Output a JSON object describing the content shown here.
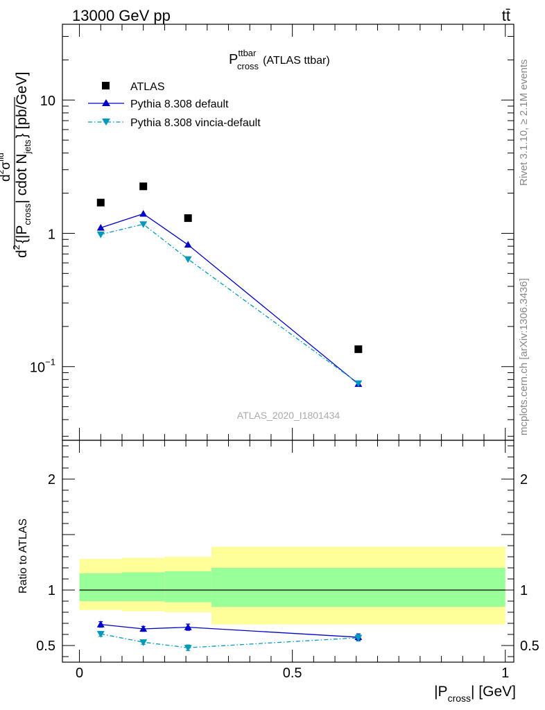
{
  "header": {
    "energy_label": "13000 GeV pp",
    "process_label": "tt̄"
  },
  "side": {
    "rivet_label": "Rivet 3.1.10, ≥ 2.1M events",
    "mcplots_label": "mcplots.cern.ch [arXiv:1306.3436]"
  },
  "chart_data": [
    {
      "type": "line",
      "panel": "main",
      "title": "P_cross^ttbar (ATLAS ttbar)",
      "title_main": "P",
      "title_sup": "ttbar",
      "title_sub": "cross",
      "title_suffix": "(ATLAS ttbar)",
      "analysis_label": "ATLAS_2020_I1801434",
      "ylabel": "d²σ^fid / d²{|P_cross| cdot N_jets} [pb/GeV]",
      "ylabel_parts": {
        "num_prefix": "d",
        "num_sup": "2",
        "num_sigma": "σ",
        "num_sigma_sup": "fid",
        "den_prefix": "d",
        "den_sup": "2",
        "den_body": "{|P",
        "den_sub1": "cross",
        "den_mid": "| cdot N",
        "den_sub2": "jets",
        "den_suffix": "} [pb/GeV]"
      },
      "yscale": "log",
      "ylim": [
        0.028,
        37
      ],
      "xlim": [
        -0.04,
        1.02
      ],
      "yticks": [
        {
          "value": 0.1,
          "base": "10",
          "exp": "−1"
        },
        {
          "value": 1,
          "base": "1",
          "exp": ""
        },
        {
          "value": 10,
          "base": "10",
          "exp": ""
        }
      ],
      "legend_position": "top-left",
      "series": [
        {
          "name": "ATLAS",
          "marker": "square",
          "color": "#000000",
          "x": [
            0.05,
            0.15,
            0.255,
            0.655
          ],
          "y": [
            1.7,
            2.25,
            1.3,
            0.135
          ]
        },
        {
          "name": "Pythia 8.308 default",
          "marker": "triangle-up",
          "line": "solid",
          "color": "#0000cc",
          "x": [
            0.05,
            0.15,
            0.255,
            0.655
          ],
          "y": [
            1.1,
            1.4,
            0.82,
            0.074
          ]
        },
        {
          "name": "Pythia 8.308 vincia-default",
          "marker": "triangle-down",
          "line": "dashdot",
          "color": "#0099bb",
          "x": [
            0.05,
            0.15,
            0.255,
            0.655
          ],
          "y": [
            0.98,
            1.17,
            0.64,
            0.075
          ]
        }
      ]
    },
    {
      "type": "line",
      "panel": "ratio",
      "ylabel": "Ratio to ATLAS",
      "xlabel": "|P_cross| [GeV]",
      "xlabel_parts": {
        "pre": "|P",
        "sub": "cross",
        "post": "| [GeV]"
      },
      "xlim": [
        -0.04,
        1.02
      ],
      "ylim": [
        0.35,
        2.35
      ],
      "xticks": [
        {
          "value": 0,
          "label": "0"
        },
        {
          "value": 0.5,
          "label": "0.5"
        },
        {
          "value": 1,
          "label": "1"
        }
      ],
      "yticks": [
        {
          "value": 0.5,
          "label": "0.5"
        },
        {
          "value": 1,
          "label": "1"
        },
        {
          "value": 2,
          "label": "2"
        }
      ],
      "bands": [
        {
          "x0": 0.0,
          "x1": 0.1,
          "yellow": [
            0.82,
            1.28
          ],
          "green": [
            0.9,
            1.15
          ]
        },
        {
          "x0": 0.1,
          "x1": 0.2,
          "yellow": [
            0.81,
            1.29
          ],
          "green": [
            0.9,
            1.16
          ]
        },
        {
          "x0": 0.2,
          "x1": 0.31,
          "yellow": [
            0.8,
            1.3
          ],
          "green": [
            0.89,
            1.17
          ]
        },
        {
          "x0": 0.31,
          "x1": 1.0,
          "yellow": [
            0.69,
            1.39
          ],
          "green": [
            0.85,
            1.2
          ]
        }
      ],
      "series": [
        {
          "name": "Pythia 8.308 default",
          "marker": "triangle-up",
          "line": "solid",
          "color": "#0000cc",
          "x": [
            0.05,
            0.15,
            0.255,
            0.655
          ],
          "y": [
            0.69,
            0.65,
            0.665,
            0.575
          ],
          "err": [
            0.025,
            0.022,
            0.028,
            0.03
          ]
        },
        {
          "name": "Pythia 8.308 vincia-default",
          "marker": "triangle-down",
          "line": "dashdot",
          "color": "#0099bb",
          "x": [
            0.05,
            0.15,
            0.255,
            0.655
          ],
          "y": [
            0.605,
            0.53,
            0.48,
            0.57
          ],
          "err": [
            0.022,
            0.02,
            0.025,
            0.03
          ]
        }
      ]
    }
  ]
}
